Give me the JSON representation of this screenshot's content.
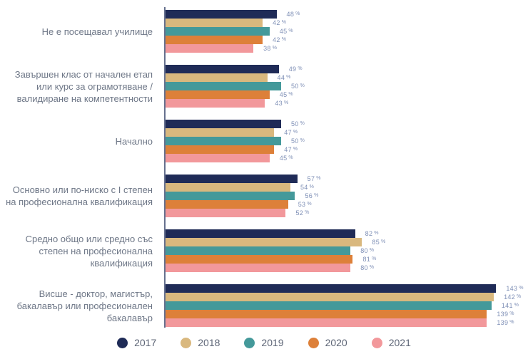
{
  "chart_data": {
    "type": "bar",
    "orientation": "horizontal",
    "unit": "%",
    "title": "",
    "xlabel": "",
    "ylabel": "",
    "xlim": [
      0,
      150
    ],
    "grid": false,
    "legend_position": "bottom",
    "value_labels": true,
    "categories": [
      "Не е посещавал училище",
      "Завършен клас от начален етап или курс за ограмотяване / валидиране на компетентности",
      "Начално",
      "Основно или по-ниско с I степен на професионална квалификация",
      "Средно общо или средно със степен на професионална квалификация",
      "Висше - доктор, магистър, бакалавър или професионален бакалавър"
    ],
    "series": [
      {
        "name": "2017",
        "color": "#1f2b57",
        "values": [
          48,
          49,
          50,
          57,
          82,
          143
        ]
      },
      {
        "name": "2018",
        "color": "#d9b87e",
        "values": [
          42,
          44,
          47,
          54,
          85,
          142
        ]
      },
      {
        "name": "2019",
        "color": "#44999a",
        "values": [
          45,
          50,
          50,
          56,
          80,
          141
        ]
      },
      {
        "name": "2020",
        "color": "#dd8039",
        "values": [
          42,
          45,
          47,
          53,
          81,
          139
        ]
      },
      {
        "name": "2021",
        "color": "#f2989b",
        "values": [
          38,
          43,
          45,
          52,
          80,
          139
        ]
      }
    ]
  },
  "style": {
    "axis_line_color": "#66708e",
    "category_label_color": "#6e7787",
    "value_label_color": "#7e8fb6",
    "legend_label_color": "#5d6576",
    "background": "#ffffff"
  },
  "legend": {
    "items": [
      {
        "label": "2017",
        "color": "#1f2b57"
      },
      {
        "label": "2018",
        "color": "#d9b87e"
      },
      {
        "label": "2019",
        "color": "#44999a"
      },
      {
        "label": "2020",
        "color": "#dd8039"
      },
      {
        "label": "2021",
        "color": "#f2989b"
      }
    ]
  }
}
